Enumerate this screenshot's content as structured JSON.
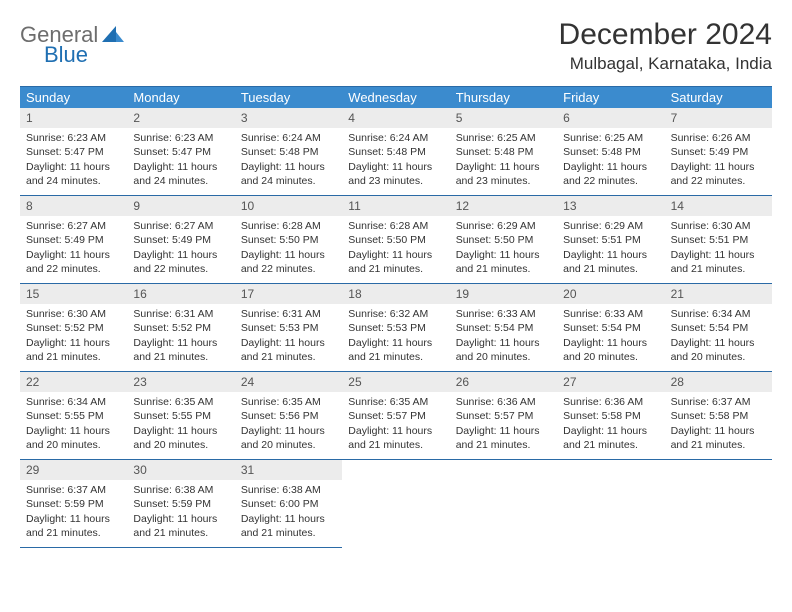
{
  "logo": {
    "word1": "General",
    "word2": "Blue"
  },
  "title": "December 2024",
  "location": "Mulbagal, Karnataka, India",
  "colors": {
    "header_bg": "#3b8bce",
    "header_text": "#ffffff",
    "border": "#2a6aa6",
    "daynum_bg": "#ececec",
    "body_text": "#333333",
    "logo_gray": "#6d6d6d",
    "logo_blue": "#1f6fb2"
  },
  "weekdays": [
    "Sunday",
    "Monday",
    "Tuesday",
    "Wednesday",
    "Thursday",
    "Friday",
    "Saturday"
  ],
  "weeks": [
    [
      {
        "d": "1",
        "sr": "6:23 AM",
        "ss": "5:47 PM",
        "dl": "11 hours and 24 minutes."
      },
      {
        "d": "2",
        "sr": "6:23 AM",
        "ss": "5:47 PM",
        "dl": "11 hours and 24 minutes."
      },
      {
        "d": "3",
        "sr": "6:24 AM",
        "ss": "5:48 PM",
        "dl": "11 hours and 24 minutes."
      },
      {
        "d": "4",
        "sr": "6:24 AM",
        "ss": "5:48 PM",
        "dl": "11 hours and 23 minutes."
      },
      {
        "d": "5",
        "sr": "6:25 AM",
        "ss": "5:48 PM",
        "dl": "11 hours and 23 minutes."
      },
      {
        "d": "6",
        "sr": "6:25 AM",
        "ss": "5:48 PM",
        "dl": "11 hours and 22 minutes."
      },
      {
        "d": "7",
        "sr": "6:26 AM",
        "ss": "5:49 PM",
        "dl": "11 hours and 22 minutes."
      }
    ],
    [
      {
        "d": "8",
        "sr": "6:27 AM",
        "ss": "5:49 PM",
        "dl": "11 hours and 22 minutes."
      },
      {
        "d": "9",
        "sr": "6:27 AM",
        "ss": "5:49 PM",
        "dl": "11 hours and 22 minutes."
      },
      {
        "d": "10",
        "sr": "6:28 AM",
        "ss": "5:50 PM",
        "dl": "11 hours and 22 minutes."
      },
      {
        "d": "11",
        "sr": "6:28 AM",
        "ss": "5:50 PM",
        "dl": "11 hours and 21 minutes."
      },
      {
        "d": "12",
        "sr": "6:29 AM",
        "ss": "5:50 PM",
        "dl": "11 hours and 21 minutes."
      },
      {
        "d": "13",
        "sr": "6:29 AM",
        "ss": "5:51 PM",
        "dl": "11 hours and 21 minutes."
      },
      {
        "d": "14",
        "sr": "6:30 AM",
        "ss": "5:51 PM",
        "dl": "11 hours and 21 minutes."
      }
    ],
    [
      {
        "d": "15",
        "sr": "6:30 AM",
        "ss": "5:52 PM",
        "dl": "11 hours and 21 minutes."
      },
      {
        "d": "16",
        "sr": "6:31 AM",
        "ss": "5:52 PM",
        "dl": "11 hours and 21 minutes."
      },
      {
        "d": "17",
        "sr": "6:31 AM",
        "ss": "5:53 PM",
        "dl": "11 hours and 21 minutes."
      },
      {
        "d": "18",
        "sr": "6:32 AM",
        "ss": "5:53 PM",
        "dl": "11 hours and 21 minutes."
      },
      {
        "d": "19",
        "sr": "6:33 AM",
        "ss": "5:54 PM",
        "dl": "11 hours and 20 minutes."
      },
      {
        "d": "20",
        "sr": "6:33 AM",
        "ss": "5:54 PM",
        "dl": "11 hours and 20 minutes."
      },
      {
        "d": "21",
        "sr": "6:34 AM",
        "ss": "5:54 PM",
        "dl": "11 hours and 20 minutes."
      }
    ],
    [
      {
        "d": "22",
        "sr": "6:34 AM",
        "ss": "5:55 PM",
        "dl": "11 hours and 20 minutes."
      },
      {
        "d": "23",
        "sr": "6:35 AM",
        "ss": "5:55 PM",
        "dl": "11 hours and 20 minutes."
      },
      {
        "d": "24",
        "sr": "6:35 AM",
        "ss": "5:56 PM",
        "dl": "11 hours and 20 minutes."
      },
      {
        "d": "25",
        "sr": "6:35 AM",
        "ss": "5:57 PM",
        "dl": "11 hours and 21 minutes."
      },
      {
        "d": "26",
        "sr": "6:36 AM",
        "ss": "5:57 PM",
        "dl": "11 hours and 21 minutes."
      },
      {
        "d": "27",
        "sr": "6:36 AM",
        "ss": "5:58 PM",
        "dl": "11 hours and 21 minutes."
      },
      {
        "d": "28",
        "sr": "6:37 AM",
        "ss": "5:58 PM",
        "dl": "11 hours and 21 minutes."
      }
    ],
    [
      {
        "d": "29",
        "sr": "6:37 AM",
        "ss": "5:59 PM",
        "dl": "11 hours and 21 minutes."
      },
      {
        "d": "30",
        "sr": "6:38 AM",
        "ss": "5:59 PM",
        "dl": "11 hours and 21 minutes."
      },
      {
        "d": "31",
        "sr": "6:38 AM",
        "ss": "6:00 PM",
        "dl": "11 hours and 21 minutes."
      },
      null,
      null,
      null,
      null
    ]
  ],
  "labels": {
    "sunrise": "Sunrise:",
    "sunset": "Sunset:",
    "daylight": "Daylight:"
  }
}
